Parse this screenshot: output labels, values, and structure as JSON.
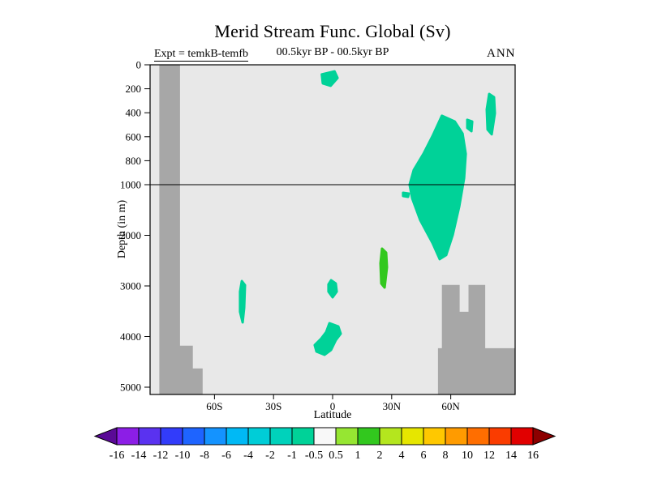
{
  "chart_data": {
    "type": "filled-contour-section",
    "title": "Merid Stream Func. Global (Sv)",
    "subtitle_left": "Expt = temkB-temfb",
    "subtitle_center": "00.5kyr BP - 00.5kyr BP",
    "subtitle_right": "ANN",
    "xlabel": "Latitude",
    "ylabel": "Depth (in m)",
    "units": "Sv",
    "x_axis": {
      "min": -92.7,
      "max": 92.7,
      "ticks": [
        {
          "lat": -60,
          "label": "60S"
        },
        {
          "lat": -30,
          "label": "30S"
        },
        {
          "lat": 0,
          "label": "0"
        },
        {
          "lat": 30,
          "label": "30N"
        },
        {
          "lat": 60,
          "label": "60N"
        }
      ]
    },
    "y_axis": {
      "style": "split-linear",
      "upper_max": 1000,
      "max": 5144,
      "ticks": [
        {
          "depth": 0,
          "label": "0"
        },
        {
          "depth": 200,
          "label": "200"
        },
        {
          "depth": 400,
          "label": "400"
        },
        {
          "depth": 600,
          "label": "600"
        },
        {
          "depth": 800,
          "label": "800"
        },
        {
          "depth": 1000,
          "label": "1000"
        },
        {
          "depth": 2000,
          "label": "2000"
        },
        {
          "depth": 3000,
          "label": "3000"
        },
        {
          "depth": 4000,
          "label": "4000"
        },
        {
          "depth": 5000,
          "label": "5000"
        }
      ]
    },
    "reference_line_depth": 1000,
    "colors": {
      "plot_bg": "#e8e8e8",
      "topography": "#a7a7a7",
      "frame": "#000000"
    },
    "topography": [
      {
        "name": "left-boundary",
        "points": [
          [
            -88,
            0
          ],
          [
            -77.5,
            0
          ],
          [
            -77.5,
            4180
          ],
          [
            -71,
            4180
          ],
          [
            -71,
            4630
          ],
          [
            -66,
            4630
          ],
          [
            -66,
            5144
          ],
          [
            -88,
            5144
          ]
        ]
      },
      {
        "name": "southeast-ridge",
        "points": [
          [
            53.5,
            5144
          ],
          [
            53.5,
            4230
          ],
          [
            55.5,
            4230
          ],
          [
            55.5,
            2980
          ],
          [
            64.5,
            2980
          ],
          [
            64.5,
            3510
          ],
          [
            69,
            3510
          ],
          [
            69,
            2980
          ],
          [
            77.5,
            2980
          ],
          [
            77.5,
            4230
          ],
          [
            92.7,
            4230
          ],
          [
            92.7,
            5144
          ]
        ]
      }
    ],
    "anomalies": [
      {
        "level": "-1 to -0.5",
        "color": "#00d298",
        "points": [
          [
            -5.5,
            80
          ],
          [
            1,
            55
          ],
          [
            2.5,
            110
          ],
          [
            -1,
            175
          ],
          [
            -5,
            155
          ]
        ]
      },
      {
        "level": "-1 to -0.5",
        "color": "#00d298",
        "points": [
          [
            55.5,
            425
          ],
          [
            62,
            473
          ],
          [
            66,
            574
          ],
          [
            67.6,
            743
          ],
          [
            66.8,
            946
          ],
          [
            64.3,
            1430
          ],
          [
            61,
            1990
          ],
          [
            57.7,
            2390
          ],
          [
            54.4,
            2470
          ],
          [
            50.7,
            2150
          ],
          [
            44.5,
            1700
          ],
          [
            40.4,
            1270
          ],
          [
            39.1,
            1000
          ],
          [
            41.2,
            878
          ],
          [
            46.1,
            743
          ],
          [
            50.7,
            595
          ]
        ]
      },
      {
        "level": "-1 to -0.5",
        "color": "#00d298",
        "points": [
          [
            79.5,
            243
          ],
          [
            82,
            270
          ],
          [
            82.4,
            405
          ],
          [
            80.8,
            580
          ],
          [
            78.7,
            540
          ],
          [
            78.3,
            372
          ]
        ]
      },
      {
        "level": "-1 to -0.5",
        "color": "#00d298",
        "points": [
          [
            68.4,
            459
          ],
          [
            70.9,
            473
          ],
          [
            70.5,
            554
          ],
          [
            68.4,
            527
          ]
        ]
      },
      {
        "level": "1 to 2",
        "color": "#32c81e",
        "points": [
          [
            25.1,
            2264
          ],
          [
            27.2,
            2344
          ],
          [
            27.6,
            2632
          ],
          [
            26.4,
            3032
          ],
          [
            24.7,
            2952
          ],
          [
            24.3,
            2552
          ]
        ]
      },
      {
        "level": "-1 to -0.5",
        "color": "#00d298",
        "points": [
          [
            -46.1,
            2904
          ],
          [
            -44.5,
            2984
          ],
          [
            -44.9,
            3432
          ],
          [
            -45.7,
            3720
          ],
          [
            -47,
            3512
          ],
          [
            -47,
            3112
          ]
        ]
      },
      {
        "level": "-1 to -0.5",
        "color": "#00d298",
        "points": [
          [
            -0.8,
            2888
          ],
          [
            1.6,
            2952
          ],
          [
            2.1,
            3112
          ],
          [
            0,
            3224
          ],
          [
            -2.1,
            3112
          ],
          [
            -2.1,
            2968
          ]
        ]
      },
      {
        "level": "-1 to -0.5",
        "color": "#00d298",
        "points": [
          [
            -1.6,
            3736
          ],
          [
            2.9,
            3800
          ],
          [
            4.1,
            3944
          ],
          [
            1.6,
            4072
          ],
          [
            -0.8,
            4264
          ],
          [
            -4.1,
            4360
          ],
          [
            -8.2,
            4296
          ],
          [
            -9.1,
            4168
          ],
          [
            -5.8,
            4040
          ],
          [
            -3.3,
            3912
          ]
        ]
      },
      {
        "level": "-1 to -0.5",
        "color": "#00d298",
        "points": [
          [
            35.8,
            1160
          ],
          [
            38.7,
            1176
          ],
          [
            38.3,
            1240
          ],
          [
            35.8,
            1224
          ]
        ]
      }
    ],
    "colorbar": {
      "labels": [
        "-16",
        "-14",
        "-12",
        "-10",
        "-8",
        "-6",
        "-4",
        "-2",
        "-1",
        "-0.5",
        "0.5",
        "1",
        "2",
        "4",
        "6",
        "8",
        "10",
        "12",
        "14",
        "16"
      ],
      "cell_colors": [
        "#5a0a96",
        "#8c1ee6",
        "#5a32f0",
        "#323cfa",
        "#1e64ff",
        "#1493ff",
        "#00b9f5",
        "#00cdd7",
        "#00d2bb",
        "#00d298",
        "#f8f8f8",
        "#96e632",
        "#32c81e",
        "#b4e61e",
        "#e6e600",
        "#ffc800",
        "#ff9b00",
        "#ff6e00",
        "#fa3c00",
        "#e10000",
        "#8c0000"
      ]
    }
  }
}
